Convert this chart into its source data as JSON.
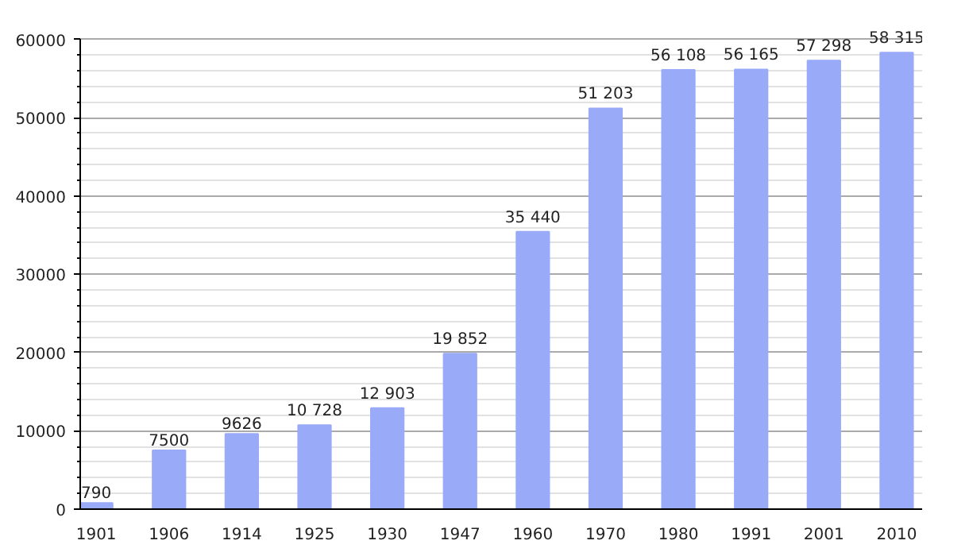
{
  "chart_data": {
    "type": "bar",
    "categories": [
      "1901",
      "1906",
      "1914",
      "1925",
      "1930",
      "1947",
      "1960",
      "1970",
      "1980",
      "1991",
      "2001",
      "2010"
    ],
    "values": [
      790,
      7500,
      9626,
      10728,
      12903,
      19852,
      35440,
      51203,
      56108,
      56165,
      57298,
      58315
    ],
    "value_labels": [
      "790",
      "7500",
      "9626",
      "10 728",
      "12 903",
      "19 852",
      "35 440",
      "51 203",
      "56 108",
      "56 165",
      "57 298",
      "58 315"
    ],
    "color": "#99aaf8",
    "ylim": [
      0,
      60000
    ],
    "yticks": [
      0,
      10000,
      20000,
      30000,
      40000,
      50000,
      60000
    ],
    "grid": "y"
  }
}
